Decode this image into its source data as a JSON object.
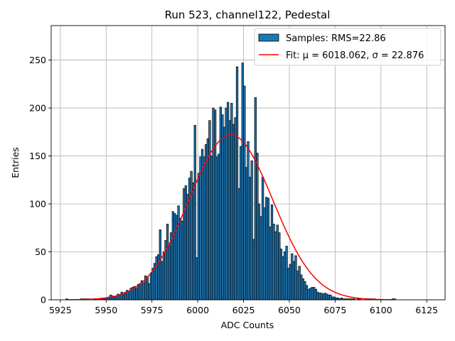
{
  "chart_data": {
    "type": "histogram",
    "title": "Run 523, channel122, Pedestal",
    "xlabel": "ADC Counts",
    "ylabel": "Entries",
    "xlim": [
      5920,
      6135
    ],
    "ylim": [
      0,
      286
    ],
    "xticks": [
      5925,
      5950,
      5975,
      6000,
      6025,
      6050,
      6075,
      6100,
      6125
    ],
    "yticks": [
      0,
      50,
      100,
      150,
      200,
      250
    ],
    "grid": true,
    "legend_position": "top-right",
    "bins": {
      "start": 5928,
      "width": 1,
      "values": [
        1,
        0,
        0,
        0,
        0,
        0,
        0,
        0,
        1,
        1,
        1,
        1,
        1,
        0,
        0,
        1,
        1,
        1,
        1,
        1,
        2,
        2,
        2,
        3,
        5,
        4,
        3,
        4,
        6,
        5,
        8,
        7,
        8,
        10,
        9,
        12,
        13,
        14,
        12,
        16,
        17,
        20,
        18,
        25,
        24,
        17,
        28,
        33,
        38,
        45,
        47,
        73,
        40,
        50,
        62,
        79,
        57,
        70,
        92,
        90,
        88,
        98,
        85,
        82,
        116,
        119,
        110,
        127,
        134,
        122,
        182,
        44,
        132,
        149,
        157,
        149,
        162,
        168,
        187,
        150,
        200,
        198,
        149,
        152,
        201,
        193,
        180,
        200,
        206,
        187,
        205,
        183,
        190,
        243,
        116,
        160,
        247,
        223,
        138,
        165,
        128,
        145,
        63,
        211,
        153,
        100,
        87,
        128,
        96,
        107,
        106,
        76,
        99,
        79,
        71,
        78,
        70,
        53,
        45,
        50,
        56,
        33,
        37,
        48,
        40,
        46,
        30,
        35,
        26,
        22,
        19,
        15,
        11,
        12,
        13,
        13,
        11,
        8,
        7,
        7,
        6,
        7,
        6,
        5,
        5,
        3,
        3,
        2,
        2,
        1,
        2,
        1,
        1,
        1,
        1,
        1,
        1,
        1,
        0,
        1,
        1,
        0,
        0,
        0,
        1,
        1,
        1,
        1,
        1,
        0,
        0,
        0,
        0,
        0,
        0,
        0,
        0,
        0,
        1,
        1
      ]
    },
    "fit": {
      "type": "gaussian",
      "mu": 6018.062,
      "sigma": 22.876,
      "amplitude": 172,
      "x_range": [
        5928,
        6106
      ],
      "color": "#ff0000"
    },
    "series": [
      {
        "name": "Samples: RMS=22.86",
        "color": "#1f77b4",
        "edge_color": "#000000"
      },
      {
        "name": "Fit: μ = 6018.062, σ = 22.876",
        "color": "#ff0000"
      }
    ]
  }
}
